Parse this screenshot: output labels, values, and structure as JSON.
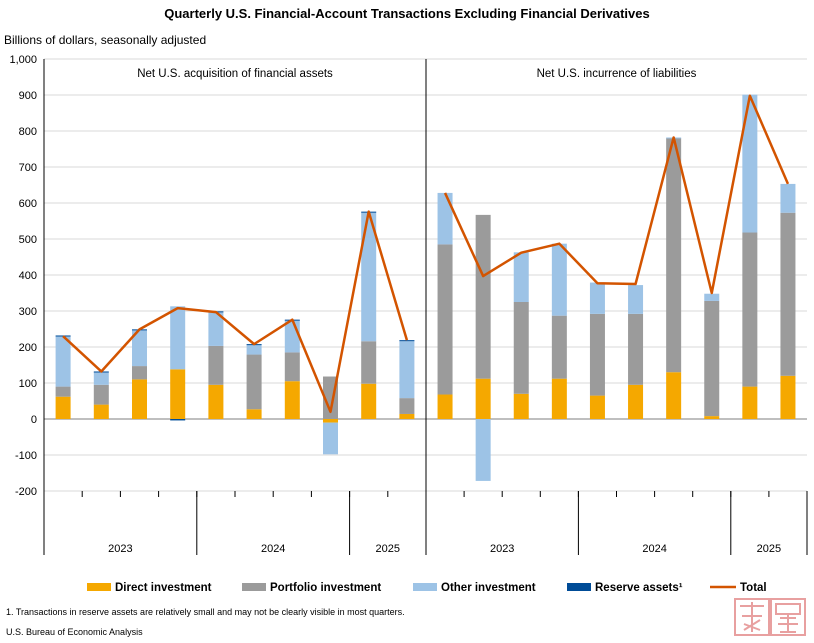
{
  "chart_data": {
    "type": "bar",
    "title": "Quarterly U.S. Financial-Account Transactions Excluding Financial Derivatives",
    "ylabel": "Billions of dollars, seasonally adjusted",
    "ylim": [
      -200,
      1000
    ],
    "yticks": [
      "-200",
      "-100",
      "0",
      "100",
      "200",
      "300",
      "400",
      "500",
      "600",
      "700",
      "800",
      "900",
      "1,000"
    ],
    "grid": true,
    "legend_position": "bottom",
    "panels": [
      {
        "label": "Net U.S. acquisition of financial assets",
        "years": [
          "2023",
          "2024",
          "2025"
        ],
        "quarters": [
          "2023 Q1",
          "2023 Q2",
          "2023 Q3",
          "2023 Q4",
          "2024 Q1",
          "2024 Q2",
          "2024 Q3",
          "2024 Q4",
          "2025 Q1",
          "2025 Q2"
        ],
        "series": [
          {
            "name": "Direct investment",
            "values": [
              62,
              40,
              110,
              138,
              95,
              27,
              105,
              -10,
              98,
              14
            ]
          },
          {
            "name": "Portfolio investment",
            "values": [
              28,
              55,
              37,
              0,
              108,
              152,
              80,
              118,
              118,
              44
            ]
          },
          {
            "name": "Other investment",
            "values": [
              140,
              36,
              100,
              175,
              95,
              28,
              90,
              -88,
              358,
              160
            ]
          },
          {
            "name": "Reserve assets",
            "values": [
              2,
              1,
              2,
              -4,
              1,
              1,
              1,
              0,
              2,
              1
            ]
          }
        ],
        "total": [
          230,
          132,
          249,
          308,
          297,
          208,
          276,
          20,
          576,
          219
        ]
      },
      {
        "label": "Net U.S. incurrence of liabilities",
        "years": [
          "2023",
          "2024",
          "2025"
        ],
        "quarters": [
          "2023 Q1",
          "2023 Q2",
          "2023 Q3",
          "2023 Q4",
          "2024 Q1",
          "2024 Q2",
          "2024 Q3",
          "2024 Q4",
          "2025 Q1",
          "2025 Q2"
        ],
        "series": [
          {
            "name": "Direct investment",
            "values": [
              68,
              112,
              70,
              112,
              65,
              95,
              130,
              8,
              90,
              120
            ]
          },
          {
            "name": "Portfolio investment",
            "values": [
              417,
              455,
              255,
              175,
              227,
              197,
              650,
              320,
              428,
              453
            ]
          },
          {
            "name": "Other investment",
            "values": [
              143,
              -172,
              138,
              200,
              87,
              80,
              2,
              20,
              383,
              80
            ]
          },
          {
            "name": "Reserve assets",
            "values": [
              0,
              0,
              0,
              0,
              0,
              0,
              0,
              0,
              0,
              0
            ]
          }
        ],
        "total": [
          628,
          397,
          462,
          487,
          377,
          375,
          782,
          350,
          898,
          653
        ]
      }
    ],
    "legend": [
      {
        "name": "Direct investment",
        "color": "#F5A800",
        "kind": "bar"
      },
      {
        "name": "Portfolio investment",
        "color": "#9B9B9B",
        "kind": "bar"
      },
      {
        "name": "Other investment",
        "color": "#9DC3E6",
        "kind": "bar"
      },
      {
        "name": "Reserve assets¹",
        "color": "#004C97",
        "kind": "bar"
      },
      {
        "name": "Total",
        "color": "#D35400",
        "kind": "line"
      }
    ]
  },
  "footnote": "1. Transactions in reserve assets are relatively small and may not be clearly visible in most quarters.",
  "source": "U.S. Bureau of Economic Analysis"
}
